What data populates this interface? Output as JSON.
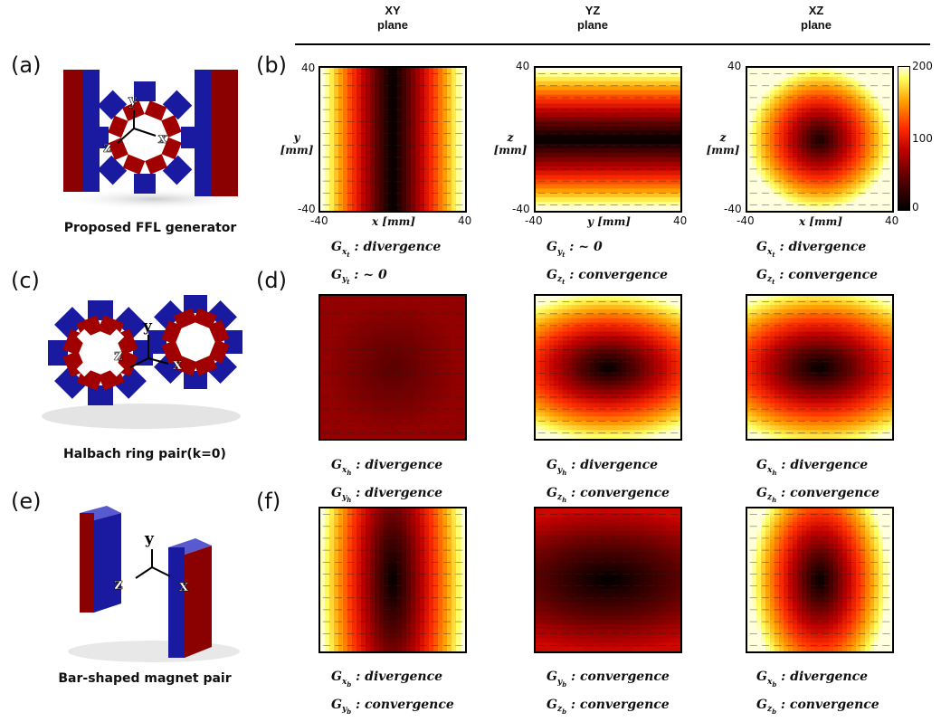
{
  "planes": [
    {
      "top": "XY",
      "bottom": "plane"
    },
    {
      "top": "YZ",
      "bottom": "plane"
    },
    {
      "top": "XZ",
      "bottom": "plane"
    }
  ],
  "panel_labels": {
    "a": "(a)",
    "b": "(b)",
    "c": "(c)",
    "d": "(d)",
    "e": "(e)",
    "f": "(f)"
  },
  "captions": {
    "ffl": "Proposed FFL generator",
    "halbach": "Halbach ring pair(k=0)",
    "bar": "Bar-shaped magnet pair"
  },
  "axes_letters": {
    "x": "x",
    "y": "y",
    "z": "z"
  },
  "ticks": {
    "neg": "-40",
    "pos": "40"
  },
  "axis_labels": {
    "xy_x": "x [mm]",
    "xy_y": "y",
    "yz_x": "y [mm]",
    "yz_y": "z",
    "xz_x": "x [mm]",
    "xz_y": "z",
    "unit": "[mm]"
  },
  "colorbar": {
    "max": "200",
    "mid": "100",
    "min": "0"
  },
  "gradients": {
    "b": [
      [
        {
          "sym": "G",
          "sub": "x",
          "subsub": "t",
          "text": ": divergence"
        },
        {
          "sym": "G",
          "sub": "y",
          "subsub": "t",
          "text": ": ~ 0"
        }
      ],
      [
        {
          "sym": "G",
          "sub": "y",
          "subsub": "t",
          "text": ": ~ 0"
        },
        {
          "sym": "G",
          "sub": "z",
          "subsub": "t",
          "text": ": convergence"
        }
      ],
      [
        {
          "sym": "G",
          "sub": "x",
          "subsub": "t",
          "text": ": divergence"
        },
        {
          "sym": "G",
          "sub": "z",
          "subsub": "t",
          "text": ": convergence"
        }
      ]
    ],
    "d": [
      [
        {
          "sym": "G",
          "sub": "x",
          "subsub": "h",
          "text": ": divergence"
        },
        {
          "sym": "G",
          "sub": "y",
          "subsub": "h",
          "text": ": divergence"
        }
      ],
      [
        {
          "sym": "G",
          "sub": "y",
          "subsub": "h",
          "text": ": divergence"
        },
        {
          "sym": "G",
          "sub": "z",
          "subsub": "h",
          "text": ": convergence"
        }
      ],
      [
        {
          "sym": "G",
          "sub": "x",
          "subsub": "h",
          "text": ": divergence"
        },
        {
          "sym": "G",
          "sub": "z",
          "subsub": "h",
          "text": ": convergence"
        }
      ]
    ],
    "f": [
      [
        {
          "sym": "G",
          "sub": "x",
          "subsub": "b",
          "text": ": divergence"
        },
        {
          "sym": "G",
          "sub": "y",
          "subsub": "b",
          "text": ": convergence"
        }
      ],
      [
        {
          "sym": "G",
          "sub": "y",
          "subsub": "b",
          "text": ": convergence"
        },
        {
          "sym": "G",
          "sub": "z",
          "subsub": "b",
          "text": ": convergence"
        }
      ],
      [
        {
          "sym": "G",
          "sub": "x",
          "subsub": "b",
          "text": ": divergence"
        },
        {
          "sym": "G",
          "sub": "z",
          "subsub": "b",
          "text": ": convergence"
        }
      ]
    ]
  }
}
